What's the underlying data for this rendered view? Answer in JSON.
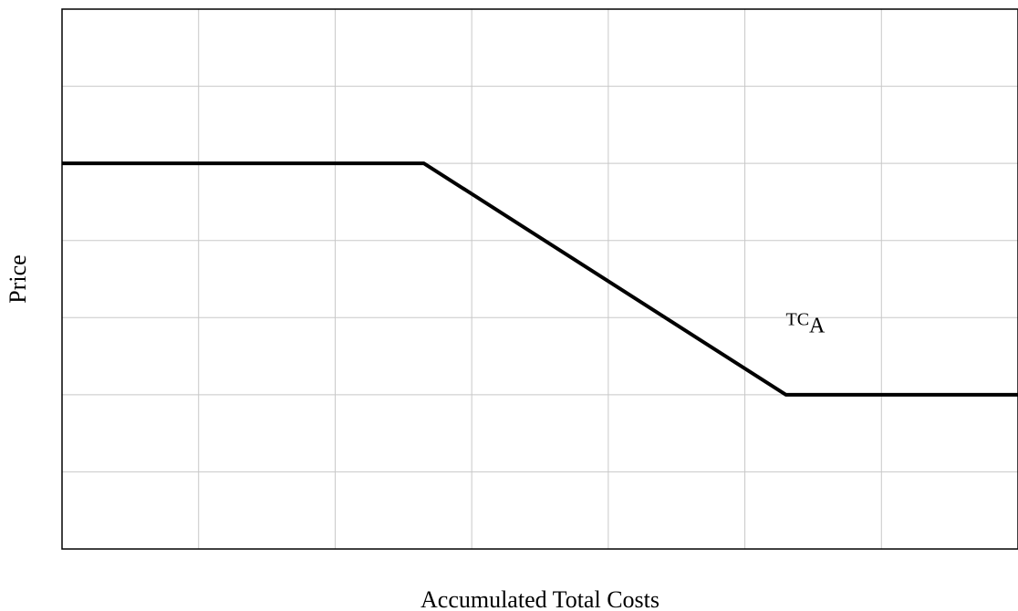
{
  "chart_data": {
    "type": "line",
    "xlabel": "Accumulated Total Costs",
    "ylabel": "Price",
    "xlim": [
      0,
      7
    ],
    "ylim": [
      0,
      7
    ],
    "grid": true,
    "series": [
      {
        "x": [
          0,
          2.65,
          5.3,
          7
        ],
        "y": [
          5,
          5,
          2,
          2
        ]
      }
    ],
    "annotations": [
      {
        "text_main": "TC",
        "text_sub": "A",
        "x": 5.3,
        "y": 2.9
      }
    ]
  }
}
